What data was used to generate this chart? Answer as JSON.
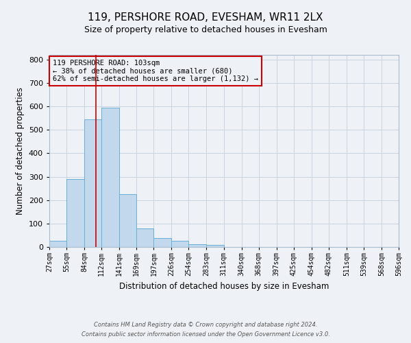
{
  "title": "119, PERSHORE ROAD, EVESHAM, WR11 2LX",
  "subtitle": "Size of property relative to detached houses in Evesham",
  "xlabel": "Distribution of detached houses by size in Evesham",
  "ylabel": "Number of detached properties",
  "bar_values": [
    27,
    290,
    545,
    595,
    225,
    80,
    38,
    25,
    12,
    10,
    0,
    0,
    0,
    0,
    0,
    0,
    0,
    0,
    0,
    0
  ],
  "bin_edges": [
    27,
    55,
    84,
    112,
    141,
    169,
    197,
    226,
    254,
    283,
    311,
    340,
    368,
    397,
    425,
    454,
    482,
    511,
    539,
    568,
    596
  ],
  "tick_labels": [
    "27sqm",
    "55sqm",
    "84sqm",
    "112sqm",
    "141sqm",
    "169sqm",
    "197sqm",
    "226sqm",
    "254sqm",
    "283sqm",
    "311sqm",
    "340sqm",
    "368sqm",
    "397sqm",
    "425sqm",
    "454sqm",
    "482sqm",
    "511sqm",
    "539sqm",
    "568sqm",
    "596sqm"
  ],
  "bar_color": "#c2d8ed",
  "bar_edge_color": "#6aaed6",
  "vline_x": 103,
  "vline_color": "#cc0000",
  "ylim": [
    0,
    820
  ],
  "yticks": [
    0,
    100,
    200,
    300,
    400,
    500,
    600,
    700,
    800
  ],
  "annotation_title": "119 PERSHORE ROAD: 103sqm",
  "annotation_line2": "← 38% of detached houses are smaller (680)",
  "annotation_line3": "62% of semi-detached houses are larger (1,132) →",
  "annotation_box_color": "#cc0000",
  "footer_line1": "Contains HM Land Registry data © Crown copyright and database right 2024.",
  "footer_line2": "Contains public sector information licensed under the Open Government Licence v3.0.",
  "background_color": "#eef2f7",
  "grid_color": "#c8d4e0",
  "title_fontsize": 11,
  "subtitle_fontsize": 9
}
